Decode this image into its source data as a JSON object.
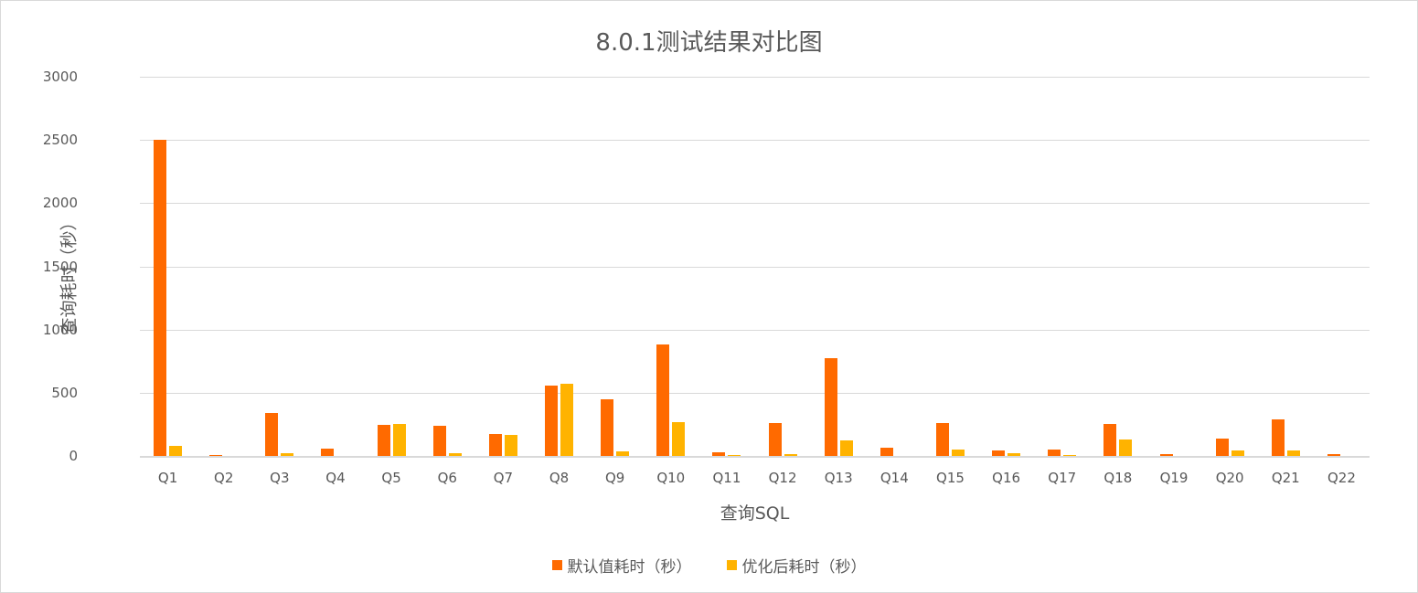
{
  "chart_data": {
    "type": "bar",
    "title": "8.0.1测试结果对比图",
    "xlabel": "查询SQL",
    "ylabel": "查询耗时（秒）",
    "ylim": [
      0,
      3000
    ],
    "yticks": [
      0,
      500,
      1000,
      1500,
      2000,
      2500,
      3000
    ],
    "grid": true,
    "legend_position": "bottom",
    "categories": [
      "Q1",
      "Q2",
      "Q3",
      "Q4",
      "Q5",
      "Q6",
      "Q7",
      "Q8",
      "Q9",
      "Q10",
      "Q11",
      "Q12",
      "Q13",
      "Q14",
      "Q15",
      "Q16",
      "Q17",
      "Q18",
      "Q19",
      "Q20",
      "Q21",
      "Q22"
    ],
    "series": [
      {
        "name": "默认值耗时（秒）",
        "color": "#FF6A00",
        "values": [
          2500,
          7,
          340,
          58,
          245,
          240,
          175,
          555,
          446,
          885,
          30,
          260,
          770,
          68,
          260,
          40,
          54,
          254,
          18,
          139,
          290,
          18
        ]
      },
      {
        "name": "优化后耗时（秒）",
        "color": "#FFB300",
        "values": [
          80,
          0,
          22,
          0,
          253,
          20,
          168,
          568,
          39,
          268,
          10,
          18,
          123,
          0,
          52,
          25,
          10,
          132,
          0,
          46,
          40,
          0
        ]
      }
    ]
  },
  "header": {
    "title": "8.0.1测试结果对比图"
  },
  "axes": {
    "y_title": "查询耗时（秒）",
    "x_title": "查询SQL",
    "y_ticks": [
      "0",
      "500",
      "1000",
      "1500",
      "2000",
      "2500",
      "3000"
    ]
  },
  "legend": {
    "items": [
      {
        "label": "默认值耗时（秒）",
        "color": "#FF6A00"
      },
      {
        "label": "优化后耗时（秒）",
        "color": "#FFB300"
      }
    ]
  }
}
